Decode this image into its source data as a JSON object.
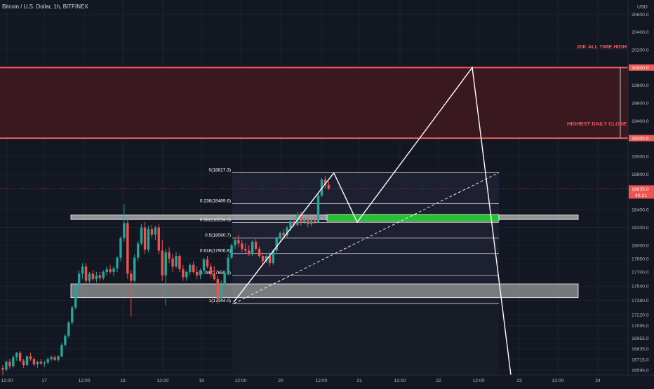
{
  "header": {
    "title": "Bitcoin / U.S. Dollar, 1h, BITFINEX"
  },
  "axis": {
    "currency": "USD",
    "price_ticks": [
      20600,
      20400,
      20200,
      19800,
      19600,
      19400,
      19000,
      18800,
      18400,
      18200,
      18000,
      17850,
      17700,
      17540,
      17380,
      17220,
      17095,
      16955,
      16835,
      16715,
      16595
    ],
    "price_tick_labels": [
      "20600.0",
      "20400.0",
      "20200.0",
      "19800.0",
      "19600.0",
      "19400.0",
      "19000.0",
      "18800.0",
      "18400.0",
      "18200.0",
      "18000.0",
      "17850.0",
      "17700.0",
      "17540.0",
      "17380.0",
      "17220.0",
      "17095.0",
      "16955.0",
      "16835.0",
      "16715.0",
      "16595.0"
    ],
    "time_labels": [
      "12:00",
      "17",
      "12:00",
      "18",
      "12:00",
      "19",
      "12:00",
      "20",
      "12:00",
      "21",
      "12:00",
      "22",
      "12:00",
      "23",
      "12:00",
      "24"
    ]
  },
  "zones": {
    "ath": {
      "label": "20K ALL TIME HIGH",
      "top": 20000.0,
      "bottom": 19205.6,
      "top_label": "20000.0",
      "bottom_label": "19205.6"
    },
    "daily_close": {
      "label": "HIGHEST DAILY CLOSE"
    }
  },
  "current_price": {
    "label": "18635.0",
    "countdown": "40:21",
    "value": 18635.0
  },
  "fib_levels": [
    {
      "label": "0(18817.3)"
    },
    {
      "label": "0.236(18469.6)"
    },
    {
      "label": "0.382(18254.5)"
    },
    {
      "label": "0.5(18080.7)"
    },
    {
      "label": "0.618(17906.8)"
    },
    {
      "label": "0.786(17659.3)"
    },
    {
      "label": "1(17344.0)"
    }
  ],
  "colors": {
    "background": "#131722",
    "up": "#26a69a",
    "down": "#ef5350",
    "zone_fill": "#3a1820",
    "zone_border": "#f05a5a",
    "grey_box": "#9e9e9e",
    "green_box": "#22c32e",
    "projection": "#ffffff"
  },
  "chart_data": {
    "type": "candlestick",
    "title": "Bitcoin / U.S. Dollar, 1h, BITFINEX",
    "ylim": [
      16540,
      20760
    ],
    "fibonacci": [
      {
        "ratio": 0,
        "price": 18817.3
      },
      {
        "ratio": 0.236,
        "price": 18469.6
      },
      {
        "ratio": 0.382,
        "price": 18254.5
      },
      {
        "ratio": 0.5,
        "price": 18080.7
      },
      {
        "ratio": 0.618,
        "price": 17906.8
      },
      {
        "ratio": 0.786,
        "price": 17659.3
      },
      {
        "ratio": 1,
        "price": 17344.0
      }
    ],
    "resistance_zones": [
      {
        "name": "20K ALL TIME HIGH",
        "price": 20000.0
      },
      {
        "name": "HIGHEST DAILY CLOSE",
        "price": 19205.6
      }
    ],
    "support_boxes": [
      {
        "top": 18340,
        "bottom": 18290
      },
      {
        "top": 17565,
        "bottom": 17410
      }
    ],
    "target_box": {
      "top": 18345,
      "bottom": 18270
    },
    "projection_path": [
      18810,
      18260,
      20000,
      16540
    ],
    "anchor_segment": [
      17344,
      18817
    ],
    "candles": [
      {
        "o": 16620,
        "h": 16650,
        "l": 16540,
        "c": 16600
      },
      {
        "o": 16600,
        "h": 16700,
        "l": 16580,
        "c": 16690
      },
      {
        "o": 16690,
        "h": 16720,
        "l": 16610,
        "c": 16640
      },
      {
        "o": 16640,
        "h": 16760,
        "l": 16620,
        "c": 16740
      },
      {
        "o": 16740,
        "h": 16800,
        "l": 16700,
        "c": 16790
      },
      {
        "o": 16790,
        "h": 16810,
        "l": 16680,
        "c": 16700
      },
      {
        "o": 16700,
        "h": 16720,
        "l": 16620,
        "c": 16650
      },
      {
        "o": 16650,
        "h": 16760,
        "l": 16640,
        "c": 16750
      },
      {
        "o": 16750,
        "h": 16790,
        "l": 16700,
        "c": 16720
      },
      {
        "o": 16720,
        "h": 16740,
        "l": 16640,
        "c": 16660
      },
      {
        "o": 16660,
        "h": 16700,
        "l": 16620,
        "c": 16690
      },
      {
        "o": 16690,
        "h": 16720,
        "l": 16650,
        "c": 16670
      },
      {
        "o": 16670,
        "h": 16700,
        "l": 16630,
        "c": 16680
      },
      {
        "o": 16680,
        "h": 16740,
        "l": 16660,
        "c": 16720
      },
      {
        "o": 16720,
        "h": 16760,
        "l": 16700,
        "c": 16740
      },
      {
        "o": 16740,
        "h": 16760,
        "l": 16700,
        "c": 16710
      },
      {
        "o": 16710,
        "h": 16760,
        "l": 16690,
        "c": 16750
      },
      {
        "o": 16750,
        "h": 16900,
        "l": 16740,
        "c": 16880
      },
      {
        "o": 16880,
        "h": 17000,
        "l": 16860,
        "c": 16980
      },
      {
        "o": 16980,
        "h": 17150,
        "l": 16960,
        "c": 17130
      },
      {
        "o": 17130,
        "h": 17320,
        "l": 17110,
        "c": 17300
      },
      {
        "o": 17300,
        "h": 17560,
        "l": 17280,
        "c": 17540
      },
      {
        "o": 17540,
        "h": 17720,
        "l": 17500,
        "c": 17680
      },
      {
        "o": 17680,
        "h": 17800,
        "l": 17620,
        "c": 17760
      },
      {
        "o": 17760,
        "h": 17800,
        "l": 17560,
        "c": 17600
      },
      {
        "o": 17600,
        "h": 17700,
        "l": 17560,
        "c": 17680
      },
      {
        "o": 17680,
        "h": 17720,
        "l": 17600,
        "c": 17620
      },
      {
        "o": 17620,
        "h": 17700,
        "l": 17580,
        "c": 17660
      },
      {
        "o": 17660,
        "h": 17700,
        "l": 17600,
        "c": 17630
      },
      {
        "o": 17630,
        "h": 17720,
        "l": 17610,
        "c": 17700
      },
      {
        "o": 17700,
        "h": 17760,
        "l": 17660,
        "c": 17730
      },
      {
        "o": 17730,
        "h": 17780,
        "l": 17680,
        "c": 17700
      },
      {
        "o": 17700,
        "h": 17760,
        "l": 17650,
        "c": 17740
      },
      {
        "o": 17740,
        "h": 17880,
        "l": 17700,
        "c": 17860
      },
      {
        "o": 17860,
        "h": 18100,
        "l": 17820,
        "c": 18080
      },
      {
        "o": 18080,
        "h": 18460,
        "l": 18040,
        "c": 18250
      },
      {
        "o": 18250,
        "h": 18300,
        "l": 17620,
        "c": 17680
      },
      {
        "o": 17680,
        "h": 17720,
        "l": 17200,
        "c": 17600
      },
      {
        "o": 17600,
        "h": 17900,
        "l": 17580,
        "c": 17860
      },
      {
        "o": 17860,
        "h": 18050,
        "l": 17820,
        "c": 18020
      },
      {
        "o": 18020,
        "h": 18240,
        "l": 18000,
        "c": 18200
      },
      {
        "o": 18200,
        "h": 18260,
        "l": 17900,
        "c": 17950
      },
      {
        "o": 17950,
        "h": 18220,
        "l": 17920,
        "c": 18180
      },
      {
        "o": 18180,
        "h": 18230,
        "l": 18080,
        "c": 18120
      },
      {
        "o": 18120,
        "h": 18220,
        "l": 18060,
        "c": 18200
      },
      {
        "o": 18200,
        "h": 18240,
        "l": 17900,
        "c": 17940
      },
      {
        "o": 17940,
        "h": 18060,
        "l": 17600,
        "c": 17660
      },
      {
        "o": 17660,
        "h": 17960,
        "l": 17320,
        "c": 17920
      },
      {
        "o": 17920,
        "h": 17980,
        "l": 17800,
        "c": 17850
      },
      {
        "o": 17850,
        "h": 17900,
        "l": 17700,
        "c": 17760
      },
      {
        "o": 17760,
        "h": 17920,
        "l": 17740,
        "c": 17880
      },
      {
        "o": 17880,
        "h": 17900,
        "l": 17700,
        "c": 17730
      },
      {
        "o": 17730,
        "h": 17780,
        "l": 17600,
        "c": 17640
      },
      {
        "o": 17640,
        "h": 17720,
        "l": 17600,
        "c": 17700
      },
      {
        "o": 17700,
        "h": 17800,
        "l": 17660,
        "c": 17780
      },
      {
        "o": 17780,
        "h": 17820,
        "l": 17680,
        "c": 17700
      },
      {
        "o": 17700,
        "h": 17760,
        "l": 17620,
        "c": 17660
      },
      {
        "o": 17660,
        "h": 17740,
        "l": 17620,
        "c": 17720
      },
      {
        "o": 17720,
        "h": 17860,
        "l": 17700,
        "c": 17840
      },
      {
        "o": 17840,
        "h": 17880,
        "l": 17740,
        "c": 17760
      },
      {
        "o": 17760,
        "h": 17800,
        "l": 17640,
        "c": 17680
      },
      {
        "o": 17680,
        "h": 17760,
        "l": 17600,
        "c": 17620
      },
      {
        "o": 17620,
        "h": 17660,
        "l": 17340,
        "c": 17400
      },
      {
        "o": 17400,
        "h": 17600,
        "l": 17380,
        "c": 17560
      },
      {
        "o": 17560,
        "h": 17700,
        "l": 17540,
        "c": 17680
      },
      {
        "o": 17680,
        "h": 17900,
        "l": 17660,
        "c": 17860
      },
      {
        "o": 17860,
        "h": 18020,
        "l": 17840,
        "c": 18000
      },
      {
        "o": 18000,
        "h": 18080,
        "l": 17960,
        "c": 18060
      },
      {
        "o": 18060,
        "h": 18120,
        "l": 17980,
        "c": 18020
      },
      {
        "o": 18020,
        "h": 18060,
        "l": 17920,
        "c": 17960
      },
      {
        "o": 17960,
        "h": 18020,
        "l": 17900,
        "c": 17940
      },
      {
        "o": 17940,
        "h": 18000,
        "l": 17880,
        "c": 17900
      },
      {
        "o": 17900,
        "h": 18060,
        "l": 17880,
        "c": 18040
      },
      {
        "o": 18040,
        "h": 18070,
        "l": 17940,
        "c": 17960
      },
      {
        "o": 17960,
        "h": 17990,
        "l": 17860,
        "c": 17880
      },
      {
        "o": 17880,
        "h": 17920,
        "l": 17780,
        "c": 17820
      },
      {
        "o": 17820,
        "h": 17900,
        "l": 17800,
        "c": 17880
      },
      {
        "o": 17880,
        "h": 17920,
        "l": 17760,
        "c": 17800
      },
      {
        "o": 17800,
        "h": 17960,
        "l": 17780,
        "c": 17940
      },
      {
        "o": 17940,
        "h": 18100,
        "l": 17920,
        "c": 18080
      },
      {
        "o": 18080,
        "h": 18160,
        "l": 18040,
        "c": 18140
      },
      {
        "o": 18140,
        "h": 18180,
        "l": 18080,
        "c": 18110
      },
      {
        "o": 18110,
        "h": 18220,
        "l": 18090,
        "c": 18200
      },
      {
        "o": 18200,
        "h": 18300,
        "l": 18160,
        "c": 18270
      },
      {
        "o": 18270,
        "h": 18310,
        "l": 18200,
        "c": 18230
      },
      {
        "o": 18230,
        "h": 18380,
        "l": 18210,
        "c": 18340
      },
      {
        "o": 18340,
        "h": 18380,
        "l": 18220,
        "c": 18260
      },
      {
        "o": 18260,
        "h": 18320,
        "l": 18240,
        "c": 18300
      },
      {
        "o": 18300,
        "h": 18340,
        "l": 18200,
        "c": 18240
      },
      {
        "o": 18240,
        "h": 18300,
        "l": 18210,
        "c": 18280
      },
      {
        "o": 18280,
        "h": 18320,
        "l": 18240,
        "c": 18260
      },
      {
        "o": 18260,
        "h": 18580,
        "l": 18250,
        "c": 18560
      },
      {
        "o": 18560,
        "h": 18760,
        "l": 18540,
        "c": 18740
      },
      {
        "o": 18740,
        "h": 18780,
        "l": 18640,
        "c": 18680
      },
      {
        "o": 18680,
        "h": 18720,
        "l": 18620,
        "c": 18635
      }
    ]
  }
}
